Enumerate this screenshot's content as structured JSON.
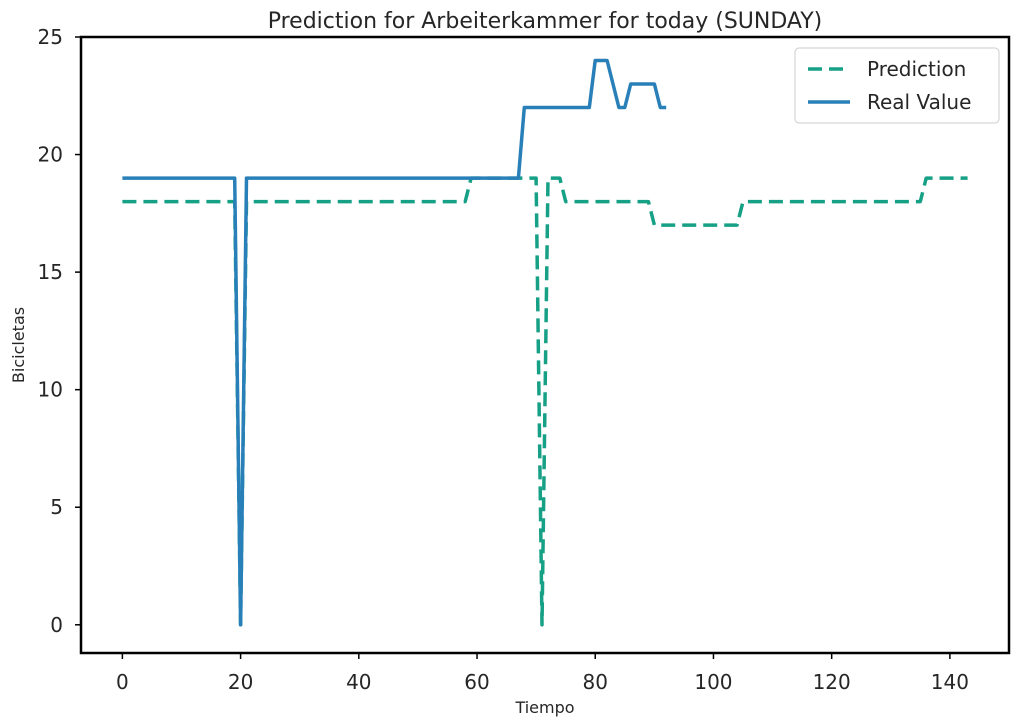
{
  "chart_data": {
    "type": "line",
    "title": "Prediction for Arbeiterkammer for today (SUNDAY)",
    "xlabel": "Tiempo",
    "ylabel": "Bicicletas",
    "xlim": [
      -7,
      150
    ],
    "ylim": [
      -1.2,
      25
    ],
    "xticks": [
      0,
      20,
      40,
      60,
      80,
      100,
      120,
      140
    ],
    "yticks": [
      0,
      5,
      10,
      15,
      20,
      25
    ],
    "grid": false,
    "legend_position": "top-right",
    "series": [
      {
        "name": "Prediction",
        "color": "#16a085",
        "dash": "dashed",
        "points": [
          [
            0,
            18
          ],
          [
            19,
            18
          ],
          [
            20,
            0
          ],
          [
            21,
            18
          ],
          [
            58,
            18
          ],
          [
            59,
            19
          ],
          [
            70,
            19
          ],
          [
            71,
            0
          ],
          [
            72,
            19
          ],
          [
            74,
            19
          ],
          [
            75,
            18
          ],
          [
            89,
            18
          ],
          [
            90,
            17
          ],
          [
            104,
            17
          ],
          [
            105,
            18
          ],
          [
            135,
            18
          ],
          [
            136,
            19
          ],
          [
            143,
            19
          ]
        ]
      },
      {
        "name": "Real Value",
        "color": "#2980b9",
        "dash": "solid",
        "points": [
          [
            0,
            19
          ],
          [
            19,
            19
          ],
          [
            20,
            0
          ],
          [
            21,
            19
          ],
          [
            67,
            19
          ],
          [
            68,
            22
          ],
          [
            79,
            22
          ],
          [
            80,
            24
          ],
          [
            82,
            24
          ],
          [
            84,
            22
          ],
          [
            85,
            22
          ],
          [
            86,
            23
          ],
          [
            90,
            23
          ],
          [
            91,
            22
          ],
          [
            92,
            22
          ]
        ]
      }
    ]
  }
}
